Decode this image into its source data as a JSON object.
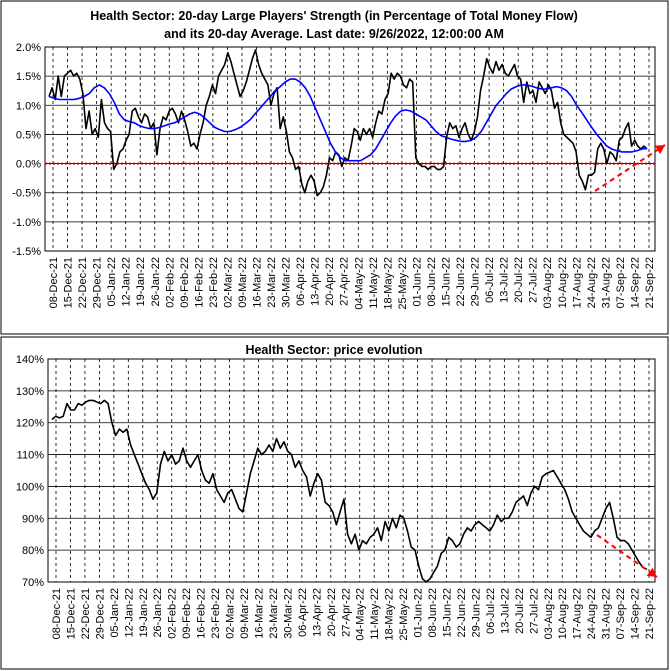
{
  "chart_data": [
    {
      "type": "line",
      "title_line1": "Health Sector: 20-day Large Players' Strength (in Percentage of Total Money Flow)",
      "title_line2": "and its 20-day Average. Last date: 9/26/2022, 12:00:00 AM",
      "y_ticks": [
        "2.0%",
        "1.5%",
        "1.0%",
        "0.5%",
        "0.0%",
        "-0.5%",
        "-1.0%",
        "-1.5%"
      ],
      "ylim": [
        -1.5,
        2.0
      ],
      "x_labels": [
        "08-Dec-21",
        "15-Dec-21",
        "22-Dec-21",
        "29-Dec-21",
        "05-Jan-22",
        "12-Jan-22",
        "19-Jan-22",
        "26-Jan-22",
        "02-Feb-22",
        "09-Feb-22",
        "16-Feb-22",
        "23-Feb-22",
        "02-Mar-22",
        "09-Mar-22",
        "16-Mar-22",
        "23-Mar-22",
        "30-Mar-22",
        "06-Apr-22",
        "13-Apr-22",
        "20-Apr-22",
        "27-Apr-22",
        "04-May-22",
        "11-May-22",
        "18-May-22",
        "25-May-22",
        "01-Jun-22",
        "08-Jun-22",
        "15-Jun-22",
        "22-Jun-22",
        "29-Jun-22",
        "06-Jul-22",
        "13-Jul-22",
        "20-Jul-22",
        "27-Jul-22",
        "03-Aug-22",
        "10-Aug-22",
        "17-Aug-22",
        "24-Aug-22",
        "31-Aug-22",
        "07-Sep-22",
        "14-Sep-22",
        "21-Sep-22"
      ],
      "grid": true,
      "series": [
        {
          "color": "#000000",
          "values": [
            1.15,
            1.3,
            1.1,
            1.5,
            1.15,
            1.5,
            1.55,
            1.6,
            1.5,
            1.55,
            1.45,
            1.2,
            0.6,
            0.9,
            0.5,
            0.6,
            0.45,
            1.1,
            0.7,
            0.6,
            0.55,
            -0.1,
            0.0,
            0.2,
            0.25,
            0.4,
            0.5,
            0.9,
            0.95,
            0.8,
            0.7,
            0.85,
            0.8,
            0.6,
            0.7,
            0.15,
            0.6,
            0.8,
            0.75,
            0.9,
            0.95,
            0.85,
            0.7,
            0.9,
            0.75,
            0.55,
            0.3,
            0.35,
            0.25,
            0.5,
            0.7,
            1.0,
            1.15,
            1.35,
            1.2,
            1.5,
            1.6,
            1.7,
            1.9,
            1.75,
            1.55,
            1.35,
            1.15,
            1.25,
            1.4,
            1.6,
            1.8,
            1.95,
            1.7,
            1.55,
            1.45,
            1.35,
            1.0,
            1.2,
            1.3,
            0.6,
            0.8,
            0.55,
            0.2,
            0.1,
            -0.1,
            -0.05,
            -0.35,
            -0.5,
            -0.3,
            -0.2,
            -0.3,
            -0.55,
            -0.5,
            -0.4,
            -0.2,
            0.1,
            0.05,
            0.2,
            0.15,
            -0.05,
            0.1,
            0.05,
            0.3,
            0.6,
            0.55,
            0.4,
            0.6,
            0.5,
            0.6,
            0.45,
            0.7,
            0.9,
            0.85,
            1.1,
            1.2,
            1.55,
            1.45,
            1.55,
            1.5,
            1.35,
            1.3,
            1.45,
            1.4,
            0.1,
            0.0,
            -0.05,
            -0.05,
            -0.1,
            -0.05,
            -0.05,
            -0.1,
            -0.1,
            -0.05,
            0.45,
            0.7,
            0.6,
            0.65,
            0.45,
            0.6,
            0.7,
            0.5,
            0.4,
            0.55,
            0.8,
            1.25,
            1.5,
            1.8,
            1.65,
            1.55,
            1.75,
            1.6,
            1.7,
            1.55,
            1.5,
            1.6,
            1.7,
            1.5,
            1.45,
            1.05,
            1.4,
            1.2,
            1.25,
            1.05,
            1.4,
            1.3,
            1.2,
            1.35,
            1.25,
            0.95,
            1.05,
            0.7,
            0.5,
            0.45,
            0.4,
            0.35,
            0.2,
            -0.2,
            -0.3,
            -0.45,
            -0.2,
            -0.2,
            -0.15,
            0.25,
            0.35,
            0.25,
            0.0,
            0.2,
            0.15,
            0.05,
            0.4,
            0.45,
            0.6,
            0.7,
            0.3,
            0.4,
            0.3,
            0.25,
            0.3,
            0.25
          ]
        },
        {
          "color": "#0000ff",
          "values": [
            1.15,
            1.12,
            1.1,
            1.1,
            1.1,
            1.1,
            1.12,
            1.15,
            1.2,
            1.3,
            1.35,
            1.3,
            1.2,
            1.05,
            0.85,
            0.75,
            0.72,
            0.7,
            0.65,
            0.62,
            0.6,
            0.6,
            0.62,
            0.65,
            0.68,
            0.7,
            0.75,
            0.8,
            0.85,
            0.88,
            0.85,
            0.78,
            0.7,
            0.62,
            0.58,
            0.55,
            0.55,
            0.58,
            0.62,
            0.68,
            0.75,
            0.85,
            0.95,
            1.05,
            1.15,
            1.25,
            1.32,
            1.4,
            1.45,
            1.45,
            1.4,
            1.3,
            1.15,
            0.95,
            0.75,
            0.55,
            0.35,
            0.2,
            0.1,
            0.05,
            0.05,
            0.05,
            0.05,
            0.1,
            0.15,
            0.25,
            0.4,
            0.55,
            0.7,
            0.82,
            0.9,
            0.92,
            0.9,
            0.85,
            0.8,
            0.75,
            0.65,
            0.55,
            0.48,
            0.45,
            0.42,
            0.4,
            0.38,
            0.38,
            0.4,
            0.45,
            0.55,
            0.7,
            0.85,
            1.0,
            1.1,
            1.2,
            1.28,
            1.32,
            1.35,
            1.35,
            1.33,
            1.3,
            1.28,
            1.28,
            1.3,
            1.32,
            1.3,
            1.25,
            1.15,
            1.0,
            0.88,
            0.75,
            0.62,
            0.5,
            0.4,
            0.3,
            0.25,
            0.22,
            0.2,
            0.2,
            0.2,
            0.22,
            0.25,
            0.26
          ]
        }
      ]
    },
    {
      "type": "line",
      "title": "Health Sector: price evolution",
      "y_ticks": [
        "140%",
        "130%",
        "120%",
        "110%",
        "100%",
        "90%",
        "80%",
        "70%"
      ],
      "ylim": [
        70,
        140
      ],
      "x_labels": [
        "08-Dec-21",
        "15-Dec-21",
        "22-Dec-21",
        "29-Dec-21",
        "05-Jan-22",
        "12-Jan-22",
        "19-Jan-22",
        "26-Jan-22",
        "02-Feb-22",
        "09-Feb-22",
        "16-Feb-22",
        "23-Feb-22",
        "02-Mar-22",
        "09-Mar-22",
        "16-Mar-22",
        "23-Mar-22",
        "30-Mar-22",
        "06-Apr-22",
        "13-Apr-22",
        "20-Apr-22",
        "27-Apr-22",
        "04-May-22",
        "11-May-22",
        "18-May-22",
        "25-May-22",
        "01-Jun-22",
        "08-Jun-22",
        "15-Jun-22",
        "22-Jun-22",
        "29-Jun-22",
        "06-Jul-22",
        "13-Jul-22",
        "20-Jul-22",
        "27-Jul-22",
        "03-Aug-22",
        "10-Aug-22",
        "17-Aug-22",
        "24-Aug-22",
        "31-Aug-22",
        "07-Sep-22",
        "14-Sep-22",
        "21-Sep-22"
      ],
      "grid": true,
      "series": [
        {
          "color": "#000000",
          "values": [
            121,
            122,
            121.5,
            122,
            126,
            124,
            124,
            126,
            125.5,
            126.5,
            127,
            127,
            126.5,
            126,
            127,
            126,
            120,
            116,
            118,
            117,
            118,
            113,
            110,
            107,
            104,
            101,
            99,
            96,
            98,
            107,
            111,
            108,
            110,
            107,
            108,
            112,
            108,
            106,
            108,
            110,
            105,
            102,
            101,
            104,
            99,
            97,
            95,
            98,
            99,
            96,
            93,
            92,
            98,
            104,
            108,
            112,
            110,
            111,
            113,
            111,
            115,
            112,
            114,
            111,
            110,
            106,
            108,
            105,
            103,
            97,
            101,
            104,
            102,
            95,
            94,
            92,
            88,
            92,
            96,
            85,
            82,
            85,
            80,
            83,
            82,
            84,
            85,
            87,
            83,
            89,
            86,
            90,
            87,
            91,
            90,
            86,
            81,
            80,
            75,
            71,
            70,
            71,
            73,
            75,
            79,
            80,
            84,
            83,
            81,
            82,
            85,
            87,
            86,
            88,
            89,
            88,
            87,
            86,
            88,
            91,
            89,
            90,
            90,
            92,
            95,
            96,
            97,
            94,
            98,
            100,
            99,
            103,
            104,
            104.5,
            105,
            103,
            101,
            99,
            96,
            92,
            90,
            88,
            86,
            85,
            84,
            86,
            87,
            90,
            93,
            95,
            90,
            84,
            83,
            83,
            82,
            80,
            78,
            76,
            74.5,
            74
          ]
        }
      ]
    }
  ]
}
